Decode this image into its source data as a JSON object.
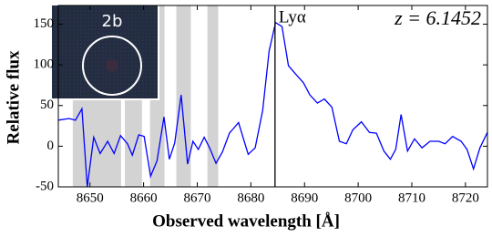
{
  "chart_data": {
    "type": "line",
    "x_label": "Observed wavelength [Å]",
    "y_label": "Relative flux",
    "xlim": [
      8644.1,
      8724.1
    ],
    "ylim": [
      -50,
      173
    ],
    "xticks": [
      8650,
      8660,
      8670,
      8680,
      8690,
      8700,
      8710,
      8720
    ],
    "yticks": [
      -50,
      0,
      50,
      100,
      150
    ],
    "grid": false,
    "x": [
      8644.1,
      8646.1,
      8647.3,
      8648.5,
      8649.5,
      8650.7,
      8651.9,
      8653.3,
      8654.5,
      8655.7,
      8657.0,
      8657.9,
      8659.1,
      8660.1,
      8661.3,
      8662.5,
      8663.8,
      8664.8,
      8665.8,
      8667.0,
      8668.2,
      8669.2,
      8670.2,
      8671.3,
      8672.3,
      8673.5,
      8674.7,
      8676.0,
      8677.7,
      8679.5,
      8680.8,
      8682.2,
      8683.4,
      8684.6,
      8685.8,
      8687.0,
      8688.3,
      8689.8,
      8691.0,
      8692.4,
      8693.7,
      8695.1,
      8696.5,
      8697.8,
      8699.0,
      8700.6,
      8702.1,
      8703.4,
      8704.8,
      8706.0,
      8707.0,
      8708.0,
      8709.2,
      8710.5,
      8711.9,
      8713.4,
      8715.0,
      8716.2,
      8717.6,
      8719.2,
      8720.3,
      8721.5,
      8722.7,
      8724.1
    ],
    "series": [
      {
        "color": "#0000ff",
        "values": [
          32,
          34,
          32,
          46,
          -50,
          11,
          -9,
          6,
          -9,
          13,
          3,
          -11,
          14,
          12,
          -37,
          -18,
          36,
          -16,
          4,
          63,
          -22,
          6,
          -4,
          11,
          -2,
          -21,
          -7,
          16,
          29,
          -10,
          -2,
          44,
          117,
          152,
          147,
          99,
          89,
          78,
          63,
          53,
          58,
          48,
          6,
          3,
          20,
          30,
          17,
          16,
          -6,
          -16,
          -4,
          39,
          -6,
          9,
          -2,
          6,
          6,
          3,
          12,
          6,
          -4,
          -28,
          -2,
          17
        ]
      }
    ],
    "shaded_regions": [
      [
        8646.8,
        8655.8
      ],
      [
        8656.5,
        8659.7
      ],
      [
        8661.2,
        8663.9
      ],
      [
        8666.1,
        8668.8
      ],
      [
        8671.9,
        8673.9
      ]
    ],
    "shade_color": "#d3d3d3",
    "vline": 8684.5,
    "vline_label": "Lyα",
    "annotation": "z = 6.1452",
    "inset_label": "2b"
  }
}
